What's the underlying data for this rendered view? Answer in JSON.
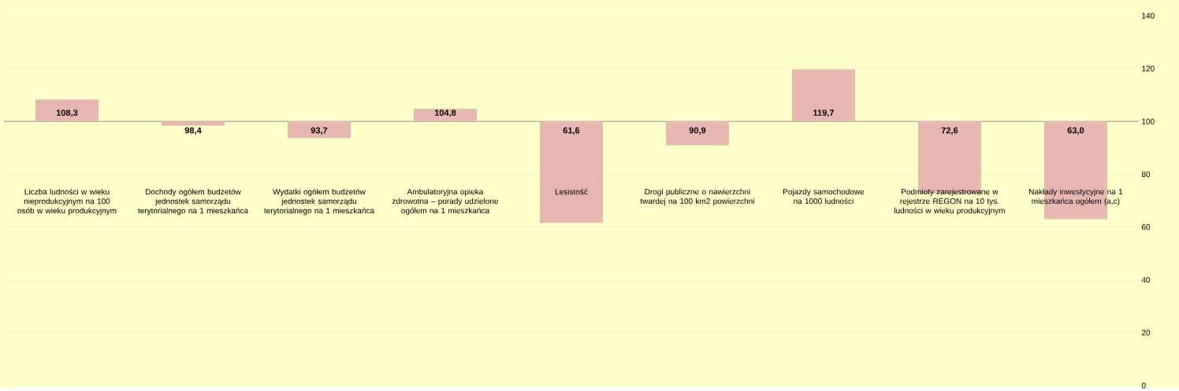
{
  "chart_data": {
    "type": "bar",
    "categories": [
      "Liczba ludności w wieku nieprodukcyjnym na 100 osób w wieku produkcyjnym",
      "Dochody ogółem budżetów jednostek samorządu terytorialnego na 1 mieszkańca",
      "Wydatki ogółem budżetów jednostek samorządu terytorialnego na 1 mieszkańca",
      "Ambulatoryjna opieka zdrowotna – porady udzielone ogółem na 1 mieszkańca",
      "Lesistość",
      "Drogi publiczne o nawierzchni twardej na 100 km2 powierzchni",
      "Pojazdy samochodowe na 1000 ludności",
      "Podmioty zarejestrowane w rejestrze REGON na 10 tys. ludności w wieku produkcyjnym",
      "Nakłady inwestycyjne na 1 mieszkańca ogółem (a,c)"
    ],
    "base": [
      100,
      100,
      100,
      100,
      100,
      100,
      100,
      100,
      100
    ],
    "values": [
      8.3,
      -1.6,
      -6.3,
      4.8,
      -38.4,
      -9.1,
      19.7,
      -27.4,
      -37.0
    ],
    "value_labels": [
      "108,3",
      "98,4",
      "93,7",
      "104,8",
      "61,6",
      "90,9",
      "119,7",
      "72,6",
      "63,0"
    ],
    "color": "#e6b8af",
    "ylim": [
      0,
      140
    ],
    "yticks": [
      0,
      20,
      40,
      60,
      80,
      100,
      120,
      140
    ],
    "grid": "y",
    "ref_lines": [
      {
        "axis": "y",
        "value": 100,
        "color": "#808080"
      }
    ]
  }
}
